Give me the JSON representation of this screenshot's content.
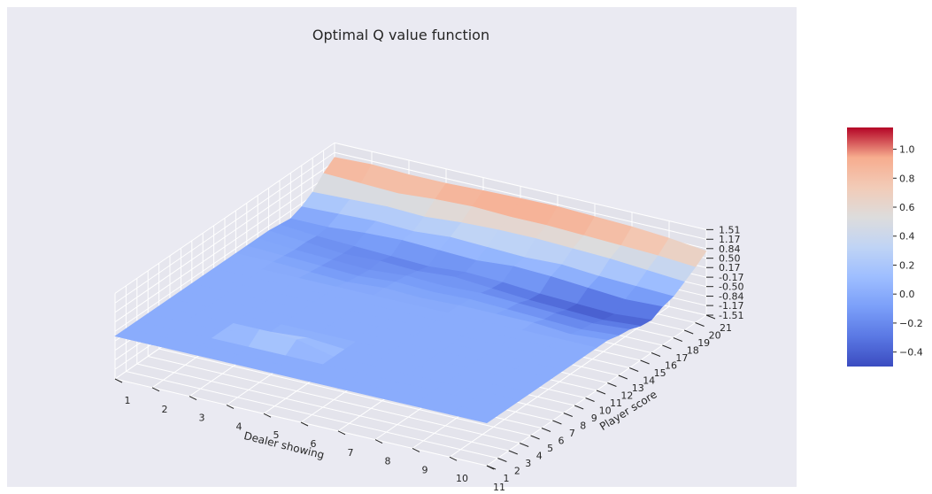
{
  "chart_data": {
    "type": "surface3d",
    "title": "Optimal Q value function",
    "xlabel": "Dealer showing",
    "ylabel": "Player score",
    "x_ticks": [
      "1",
      "2",
      "3",
      "4",
      "5",
      "6",
      "7",
      "8",
      "9",
      "10",
      "11"
    ],
    "y_ticks": [
      "1",
      "2",
      "3",
      "4",
      "5",
      "6",
      "7",
      "8",
      "9",
      "10",
      "11",
      "12",
      "13",
      "14",
      "15",
      "16",
      "17",
      "18",
      "19",
      "20",
      "21"
    ],
    "z_ticks": [
      "1.51",
      "1.17",
      "0.84",
      "0.50",
      "0.17",
      "-0.17",
      "-0.50",
      "-0.84",
      "-1.17",
      "-1.51"
    ],
    "zlim": [
      -1.51,
      1.51
    ],
    "colormap": "coolwarm",
    "colorbar": {
      "min": -0.5,
      "max": 1.15,
      "ticks": [
        "−0.4",
        "−0.2",
        "0.0",
        "0.2",
        "0.4",
        "0.6",
        "0.8",
        "1.0"
      ]
    },
    "grid": true,
    "background": "#eaeaf2",
    "z_values_description_rows": "rows = player score 1..21, columns = dealer showing 1..11",
    "z": [
      [
        0,
        0,
        0,
        0,
        0,
        0,
        0,
        0,
        0,
        0,
        0
      ],
      [
        0,
        0,
        0,
        0,
        0,
        0,
        0,
        0,
        0,
        0,
        0
      ],
      [
        0,
        0,
        0,
        0,
        0,
        0,
        0,
        0,
        0,
        0,
        0
      ],
      [
        0,
        0,
        0,
        0.35,
        0.3,
        0,
        0,
        0,
        0,
        0,
        0
      ],
      [
        0,
        0,
        0,
        0,
        0.1,
        0,
        0,
        0,
        0,
        0,
        0
      ],
      [
        0,
        0,
        0,
        0,
        0,
        0,
        0,
        0,
        0,
        0,
        0
      ],
      [
        0,
        0,
        0,
        0,
        0,
        0,
        0,
        0,
        0,
        0,
        0
      ],
      [
        0,
        0,
        0,
        0,
        0,
        0,
        0,
        0,
        0,
        0,
        0
      ],
      [
        0,
        0,
        0,
        0,
        0,
        0,
        0,
        0,
        0,
        0,
        0
      ],
      [
        0,
        0,
        0,
        0,
        0,
        0,
        0,
        0,
        0,
        0,
        0
      ],
      [
        0,
        0,
        0,
        0,
        0,
        0,
        0,
        0,
        0,
        0,
        0
      ],
      [
        0,
        0,
        -0.05,
        -0.1,
        0,
        -0.05,
        0,
        0,
        0,
        -0.1,
        0
      ],
      [
        0,
        -0.05,
        -0.1,
        -0.15,
        -0.05,
        -0.1,
        -0.05,
        -0.1,
        -0.15,
        -0.2,
        -0.1
      ],
      [
        0,
        -0.1,
        -0.15,
        -0.2,
        -0.1,
        -0.15,
        -0.1,
        -0.15,
        -0.2,
        -0.25,
        -0.15
      ],
      [
        0,
        -0.1,
        -0.2,
        -0.15,
        -0.2,
        -0.1,
        -0.2,
        -0.3,
        -0.35,
        -0.4,
        -0.3
      ],
      [
        -0.05,
        -0.15,
        -0.2,
        -0.25,
        -0.3,
        -0.2,
        -0.25,
        -0.35,
        -0.4,
        -0.45,
        -0.35
      ],
      [
        -0.1,
        -0.1,
        0.0,
        0.05,
        0.0,
        -0.05,
        0.05,
        0.0,
        -0.1,
        -0.2,
        -0.15
      ],
      [
        0.05,
        0.1,
        0.15,
        0.1,
        0.2,
        0.15,
        0.1,
        0.15,
        0.05,
        0.0,
        -0.05
      ],
      [
        0.3,
        0.35,
        0.4,
        0.35,
        0.45,
        0.5,
        0.5,
        0.45,
        0.4,
        0.3,
        0.2
      ],
      [
        0.7,
        0.65,
        0.6,
        0.7,
        0.75,
        0.7,
        0.7,
        0.65,
        0.6,
        0.55,
        0.45
      ],
      [
        1.0,
        1.05,
        1.0,
        1.0,
        1.05,
        1.08,
        1.1,
        1.05,
        1.0,
        0.9,
        0.75
      ]
    ]
  }
}
